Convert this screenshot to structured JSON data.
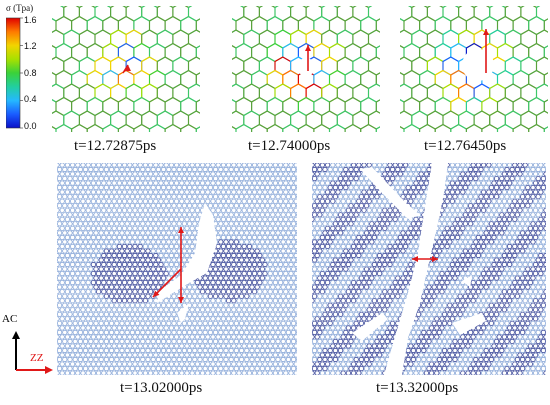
{
  "colorbar": {
    "title": "σ (Tpa)",
    "ticks": [
      "1.6",
      "1.2",
      "0.8",
      "0.4",
      "0.0"
    ],
    "colors": [
      "#e00000",
      "#ff7a00",
      "#f2d400",
      "#a8e000",
      "#3ad23a",
      "#22cfa0",
      "#25b8ff",
      "#1a5cff",
      "#0a10c8"
    ]
  },
  "panels": [
    {
      "caption": "t=12.72875ps"
    },
    {
      "caption": "t=12.74000ps"
    },
    {
      "caption": "t=12.76450ps"
    },
    {
      "caption": "t=13.02000ps"
    },
    {
      "caption": "t=13.32000ps"
    }
  ],
  "axes": {
    "vertical": "AC",
    "horizontal": "ZZ"
  },
  "colors": {
    "lattice": "#5aa23c",
    "lattice_alt": "#3cc86a",
    "atom_dark": "#3d4a9a",
    "atom_light": "#8aa8d8",
    "arrow": "#e01818",
    "axis_v": "#000000",
    "axis_h": "#e01818"
  }
}
